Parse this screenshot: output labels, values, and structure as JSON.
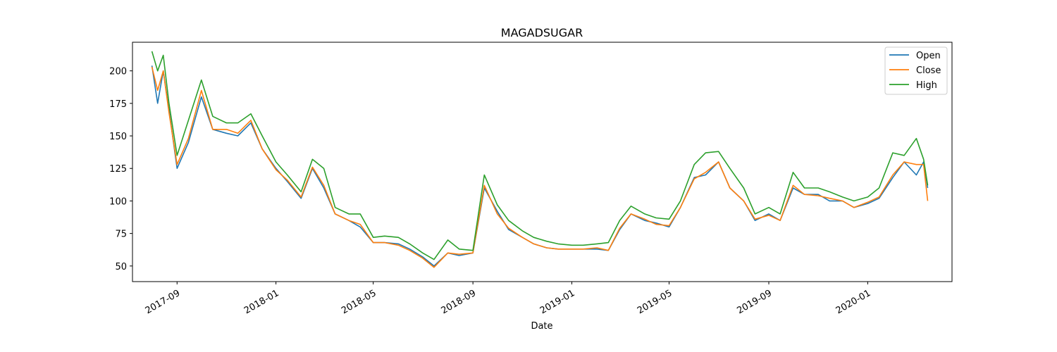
{
  "chart_data": {
    "type": "line",
    "title": "MAGADSUGAR",
    "xlabel": "Date",
    "ylabel": "",
    "ylim": [
      38,
      222
    ],
    "xlim": [
      "2017-07-08",
      "2020-04-14"
    ],
    "yticks": [
      50,
      75,
      100,
      125,
      150,
      175,
      200
    ],
    "xticks": [
      "2017-09",
      "2018-01",
      "2018-05",
      "2018-09",
      "2019-01",
      "2019-05",
      "2019-09",
      "2020-01"
    ],
    "legend": "top-right",
    "grid": false,
    "x": [
      "2017-08-01",
      "2017-08-08",
      "2017-08-15",
      "2017-08-22",
      "2017-09-01",
      "2017-09-15",
      "2017-10-01",
      "2017-10-15",
      "2017-11-01",
      "2017-11-15",
      "2017-12-01",
      "2017-12-15",
      "2018-01-01",
      "2018-01-15",
      "2018-02-01",
      "2018-02-15",
      "2018-03-01",
      "2018-03-15",
      "2018-04-01",
      "2018-04-15",
      "2018-05-01",
      "2018-05-15",
      "2018-06-01",
      "2018-06-15",
      "2018-07-01",
      "2018-07-15",
      "2018-08-01",
      "2018-08-15",
      "2018-09-01",
      "2018-09-15",
      "2018-10-01",
      "2018-10-15",
      "2018-11-01",
      "2018-11-15",
      "2018-12-01",
      "2018-12-15",
      "2019-01-01",
      "2019-01-15",
      "2019-02-01",
      "2019-02-15",
      "2019-03-01",
      "2019-03-15",
      "2019-04-01",
      "2019-04-15",
      "2019-05-01",
      "2019-05-15",
      "2019-06-01",
      "2019-06-15",
      "2019-07-01",
      "2019-07-15",
      "2019-08-01",
      "2019-08-15",
      "2019-09-01",
      "2019-09-15",
      "2019-10-01",
      "2019-10-15",
      "2019-11-01",
      "2019-11-15",
      "2019-12-01",
      "2019-12-15",
      "2020-01-01",
      "2020-01-15",
      "2020-02-01",
      "2020-02-15",
      "2020-03-01",
      "2020-03-10",
      "2020-03-15"
    ],
    "series": [
      {
        "name": "Open",
        "color": "#1f77b4",
        "values": [
          204,
          175,
          200,
          170,
          125,
          145,
          180,
          155,
          152,
          150,
          160,
          140,
          125,
          115,
          102,
          125,
          110,
          90,
          85,
          80,
          68,
          68,
          67,
          63,
          57,
          50,
          60,
          58,
          60,
          110,
          92,
          78,
          72,
          67,
          64,
          63,
          63,
          63,
          63,
          62,
          78,
          90,
          85,
          83,
          80,
          95,
          118,
          120,
          130,
          110,
          100,
          85,
          90,
          85,
          110,
          105,
          105,
          100,
          100,
          95,
          98,
          102,
          118,
          130,
          120,
          130,
          110
        ]
      },
      {
        "name": "Close",
        "color": "#ff7f0e",
        "values": [
          203,
          185,
          200,
          168,
          128,
          148,
          185,
          155,
          155,
          152,
          162,
          140,
          124,
          116,
          103,
          126,
          112,
          90,
          85,
          82,
          68,
          68,
          66,
          62,
          56,
          49,
          60,
          59,
          60,
          112,
          90,
          79,
          72,
          67,
          64,
          63,
          63,
          63,
          64,
          62,
          79,
          90,
          86,
          82,
          81,
          95,
          117,
          122,
          130,
          110,
          100,
          86,
          89,
          85,
          112,
          105,
          104,
          102,
          100,
          95,
          99,
          103,
          120,
          130,
          128,
          128,
          100
        ]
      },
      {
        "name": "High",
        "color": "#2ca02c",
        "values": [
          215,
          200,
          212,
          175,
          135,
          162,
          193,
          165,
          160,
          160,
          167,
          150,
          130,
          120,
          107,
          132,
          125,
          95,
          90,
          90,
          72,
          73,
          72,
          67,
          60,
          55,
          70,
          63,
          62,
          120,
          97,
          85,
          77,
          72,
          69,
          67,
          66,
          66,
          67,
          68,
          85,
          96,
          90,
          87,
          86,
          100,
          128,
          137,
          138,
          125,
          110,
          90,
          95,
          90,
          122,
          110,
          110,
          107,
          103,
          100,
          103,
          110,
          137,
          135,
          148,
          132,
          112
        ]
      }
    ]
  }
}
